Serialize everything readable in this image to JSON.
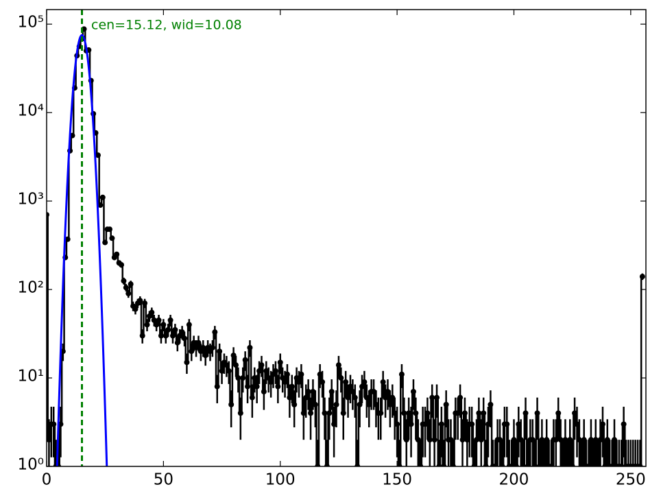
{
  "chart_data": {
    "type": "step",
    "annotation": "cen=15.12, wid=10.08",
    "fit": {
      "center": 15.12,
      "width": 10.08,
      "amplitude": 75000,
      "color": "#0000ff",
      "line_color": "#008000"
    },
    "xlim": [
      0,
      256.5
    ],
    "xticks": [
      0,
      50,
      100,
      150,
      200,
      250
    ],
    "ylim": [
      1,
      146000
    ],
    "log_y": true,
    "yticks": [
      {
        "value": 1,
        "label": "10⁰"
      },
      {
        "value": 10,
        "label": "10¹"
      },
      {
        "value": 100,
        "label": "10²"
      },
      {
        "value": 1000,
        "label": "10³"
      },
      {
        "value": 10000,
        "label": "10⁴"
      },
      {
        "value": 100000,
        "label": "10⁵"
      }
    ],
    "x": [
      0,
      1,
      2,
      3,
      4,
      5,
      6,
      7,
      8,
      9,
      10,
      11,
      12,
      13,
      14,
      15,
      16,
      17,
      18,
      19,
      20,
      21,
      22,
      23,
      24,
      25,
      26,
      27,
      28,
      29,
      30,
      31,
      32,
      33,
      34,
      35,
      36,
      37,
      38,
      39,
      40,
      41,
      42,
      43,
      44,
      45,
      46,
      47,
      48,
      49,
      50,
      51,
      52,
      53,
      54,
      55,
      56,
      57,
      58,
      59,
      60,
      61,
      62,
      63,
      64,
      65,
      66,
      67,
      68,
      69,
      70,
      71,
      72,
      73,
      74,
      75,
      76,
      77,
      78,
      79,
      80,
      81,
      82,
      83,
      84,
      85,
      86,
      87,
      88,
      89,
      90,
      91,
      92,
      93,
      94,
      95,
      96,
      97,
      98,
      99,
      100,
      101,
      102,
      103,
      104,
      105,
      106,
      107,
      108,
      109,
      110,
      111,
      112,
      113,
      114,
      115,
      116,
      117,
      118,
      119,
      120,
      121,
      122,
      123,
      124,
      125,
      126,
      127,
      128,
      129,
      130,
      131,
      132,
      133,
      134,
      135,
      136,
      137,
      138,
      139,
      140,
      141,
      142,
      143,
      144,
      145,
      146,
      147,
      148,
      149,
      150,
      151,
      152,
      153,
      154,
      155,
      156,
      157,
      158,
      159,
      160,
      161,
      162,
      163,
      164,
      165,
      166,
      167,
      168,
      169,
      170,
      171,
      172,
      173,
      174,
      175,
      176,
      177,
      178,
      179,
      180,
      181,
      182,
      183,
      184,
      185,
      186,
      187,
      188,
      189,
      190,
      191,
      192,
      193,
      194,
      195,
      196,
      197,
      198,
      199,
      200,
      201,
      202,
      203,
      204,
      205,
      206,
      207,
      208,
      209,
      210,
      211,
      212,
      213,
      214,
      215,
      216,
      217,
      218,
      219,
      220,
      221,
      222,
      223,
      224,
      225,
      226,
      227,
      228,
      229,
      230,
      231,
      232,
      233,
      234,
      235,
      236,
      237,
      238,
      239,
      240,
      241,
      242,
      243,
      244,
      245,
      246,
      247,
      248,
      249,
      250,
      251,
      252,
      253,
      254,
      255
    ],
    "series": [
      {
        "color": "#000000",
        "values": [
          700,
          2,
          3,
          3,
          1,
          1,
          3,
          20,
          230,
          370,
          3700,
          5500,
          19000,
          44000,
          56000,
          68000,
          88000,
          50000,
          51000,
          23000,
          9700,
          5900,
          3300,
          900,
          1100,
          340,
          480,
          480,
          380,
          230,
          250,
          200,
          190,
          125,
          105,
          90,
          115,
          65,
          60,
          70,
          75,
          30,
          70,
          40,
          50,
          55,
          45,
          40,
          45,
          30,
          40,
          30,
          35,
          45,
          30,
          35,
          25,
          30,
          33,
          28,
          15,
          40,
          20,
          25,
          22,
          25,
          20,
          22,
          18,
          22,
          20,
          22,
          33,
          8,
          20,
          12,
          15,
          14,
          12,
          5,
          18,
          14,
          10,
          4,
          10,
          16,
          8,
          22,
          6,
          10,
          8,
          12,
          14,
          7,
          12,
          10,
          9,
          11,
          12,
          8,
          15,
          10,
          9,
          11,
          6,
          8,
          5,
          10,
          9,
          11,
          4,
          6,
          7,
          4,
          7,
          5,
          1,
          11,
          9,
          4,
          1,
          4,
          7,
          3,
          5,
          14,
          10,
          4,
          9,
          6,
          8,
          7,
          6,
          1,
          5,
          8,
          9,
          6,
          5,
          7,
          7,
          5,
          4,
          4,
          9,
          6,
          7,
          5,
          6,
          4,
          3,
          1,
          11,
          4,
          2,
          4,
          3,
          7,
          4,
          2,
          1,
          3,
          3,
          4,
          2,
          6,
          2,
          6,
          1,
          3,
          1,
          5,
          2,
          2,
          1,
          4,
          4,
          6,
          2,
          4,
          2,
          3,
          3,
          1,
          2,
          4,
          2,
          4,
          1,
          3,
          5,
          1,
          1,
          2,
          2,
          1,
          3,
          3,
          1,
          1,
          2,
          1,
          3,
          2,
          1,
          4,
          1,
          2,
          2,
          1,
          4,
          1,
          2,
          1,
          2,
          1,
          1,
          2,
          2,
          4,
          2,
          1,
          2,
          1,
          2,
          1,
          4,
          3,
          2,
          1,
          2,
          1,
          1,
          2,
          1,
          2,
          1,
          2,
          3,
          1,
          2,
          1,
          1,
          2,
          1,
          1,
          1,
          3,
          1,
          1,
          1,
          1,
          1,
          1,
          1,
          140
        ]
      }
    ]
  }
}
